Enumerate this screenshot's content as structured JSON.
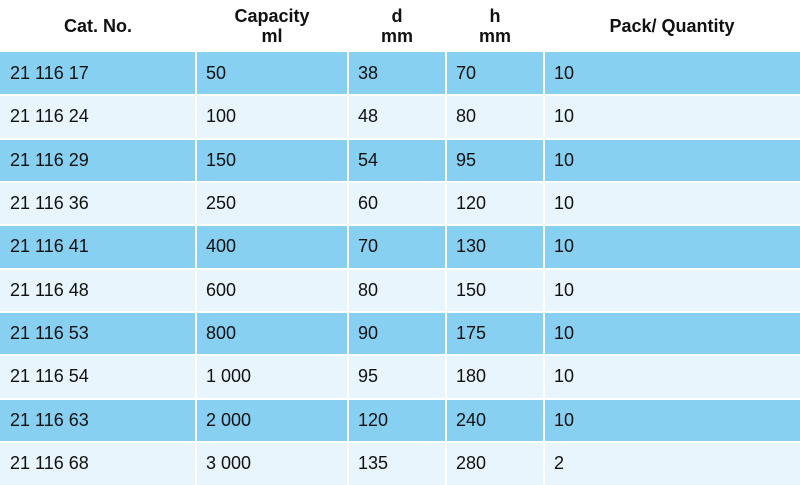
{
  "table": {
    "headers": [
      [
        "Cat. No.",
        ""
      ],
      [
        "Capacity",
        "ml"
      ],
      [
        "d",
        "mm"
      ],
      [
        "h",
        "mm"
      ],
      [
        "Pack/ Quantity",
        ""
      ]
    ],
    "rows": [
      [
        "21 116 17",
        "50",
        "38",
        "70",
        "10"
      ],
      [
        "21 116 24",
        "100",
        "48",
        "80",
        "10"
      ],
      [
        "21 116 29",
        "150",
        "54",
        "95",
        "10"
      ],
      [
        "21 116 36",
        "250",
        "60",
        "120",
        "10"
      ],
      [
        "21 116 41",
        "400",
        "70",
        "130",
        "10"
      ],
      [
        "21 116 48",
        "600",
        "80",
        "150",
        "10"
      ],
      [
        "21 116 53",
        "800",
        "90",
        "175",
        "10"
      ],
      [
        "21 116 54",
        "1 000",
        "95",
        "180",
        "10"
      ],
      [
        "21 116 63",
        "2 000",
        "120",
        "240",
        "10"
      ],
      [
        "21 116 68",
        "3 000",
        "135",
        "280",
        "2"
      ]
    ],
    "colors": {
      "row_dark": "#87d0f1",
      "row_light": "#e8f5fc",
      "separator": "#ffffff",
      "header_bg": "#ffffff"
    }
  }
}
